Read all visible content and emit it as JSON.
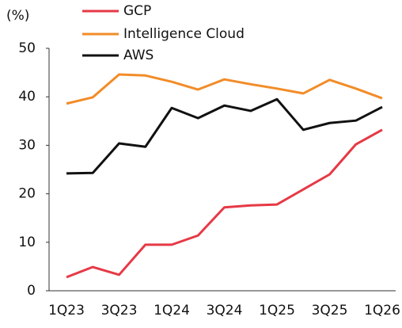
{
  "chart_data": {
    "type": "line",
    "y_label": "(%)",
    "categories": [
      "1Q23",
      null,
      "3Q23",
      null,
      "1Q24",
      null,
      "3Q24",
      null,
      "1Q25",
      null,
      "3Q25",
      null,
      "1Q26"
    ],
    "series": [
      {
        "name": "GCP",
        "color": "#e63946",
        "values": [
          2.8,
          4.9,
          3.3,
          9.5,
          9.5,
          11.4,
          17.2,
          17.6,
          17.8,
          20.9,
          24.0,
          30.2,
          33.2
        ]
      },
      {
        "name": "Intelligence Cloud",
        "color": "#f28c28",
        "values": [
          38.6,
          39.9,
          44.6,
          44.4,
          43.1,
          41.5,
          43.6,
          42.6,
          41.7,
          40.7,
          43.5,
          41.7,
          39.7
        ]
      },
      {
        "name": "AWS",
        "color": "#111111",
        "values": [
          24.2,
          24.3,
          30.4,
          29.7,
          37.7,
          35.6,
          38.2,
          37.1,
          39.5,
          33.2,
          34.6,
          35.1,
          37.9
        ]
      }
    ],
    "ylim": [
      0,
      50
    ],
    "yticks": [
      0,
      10,
      20,
      30,
      40,
      50
    ],
    "grid": false
  }
}
